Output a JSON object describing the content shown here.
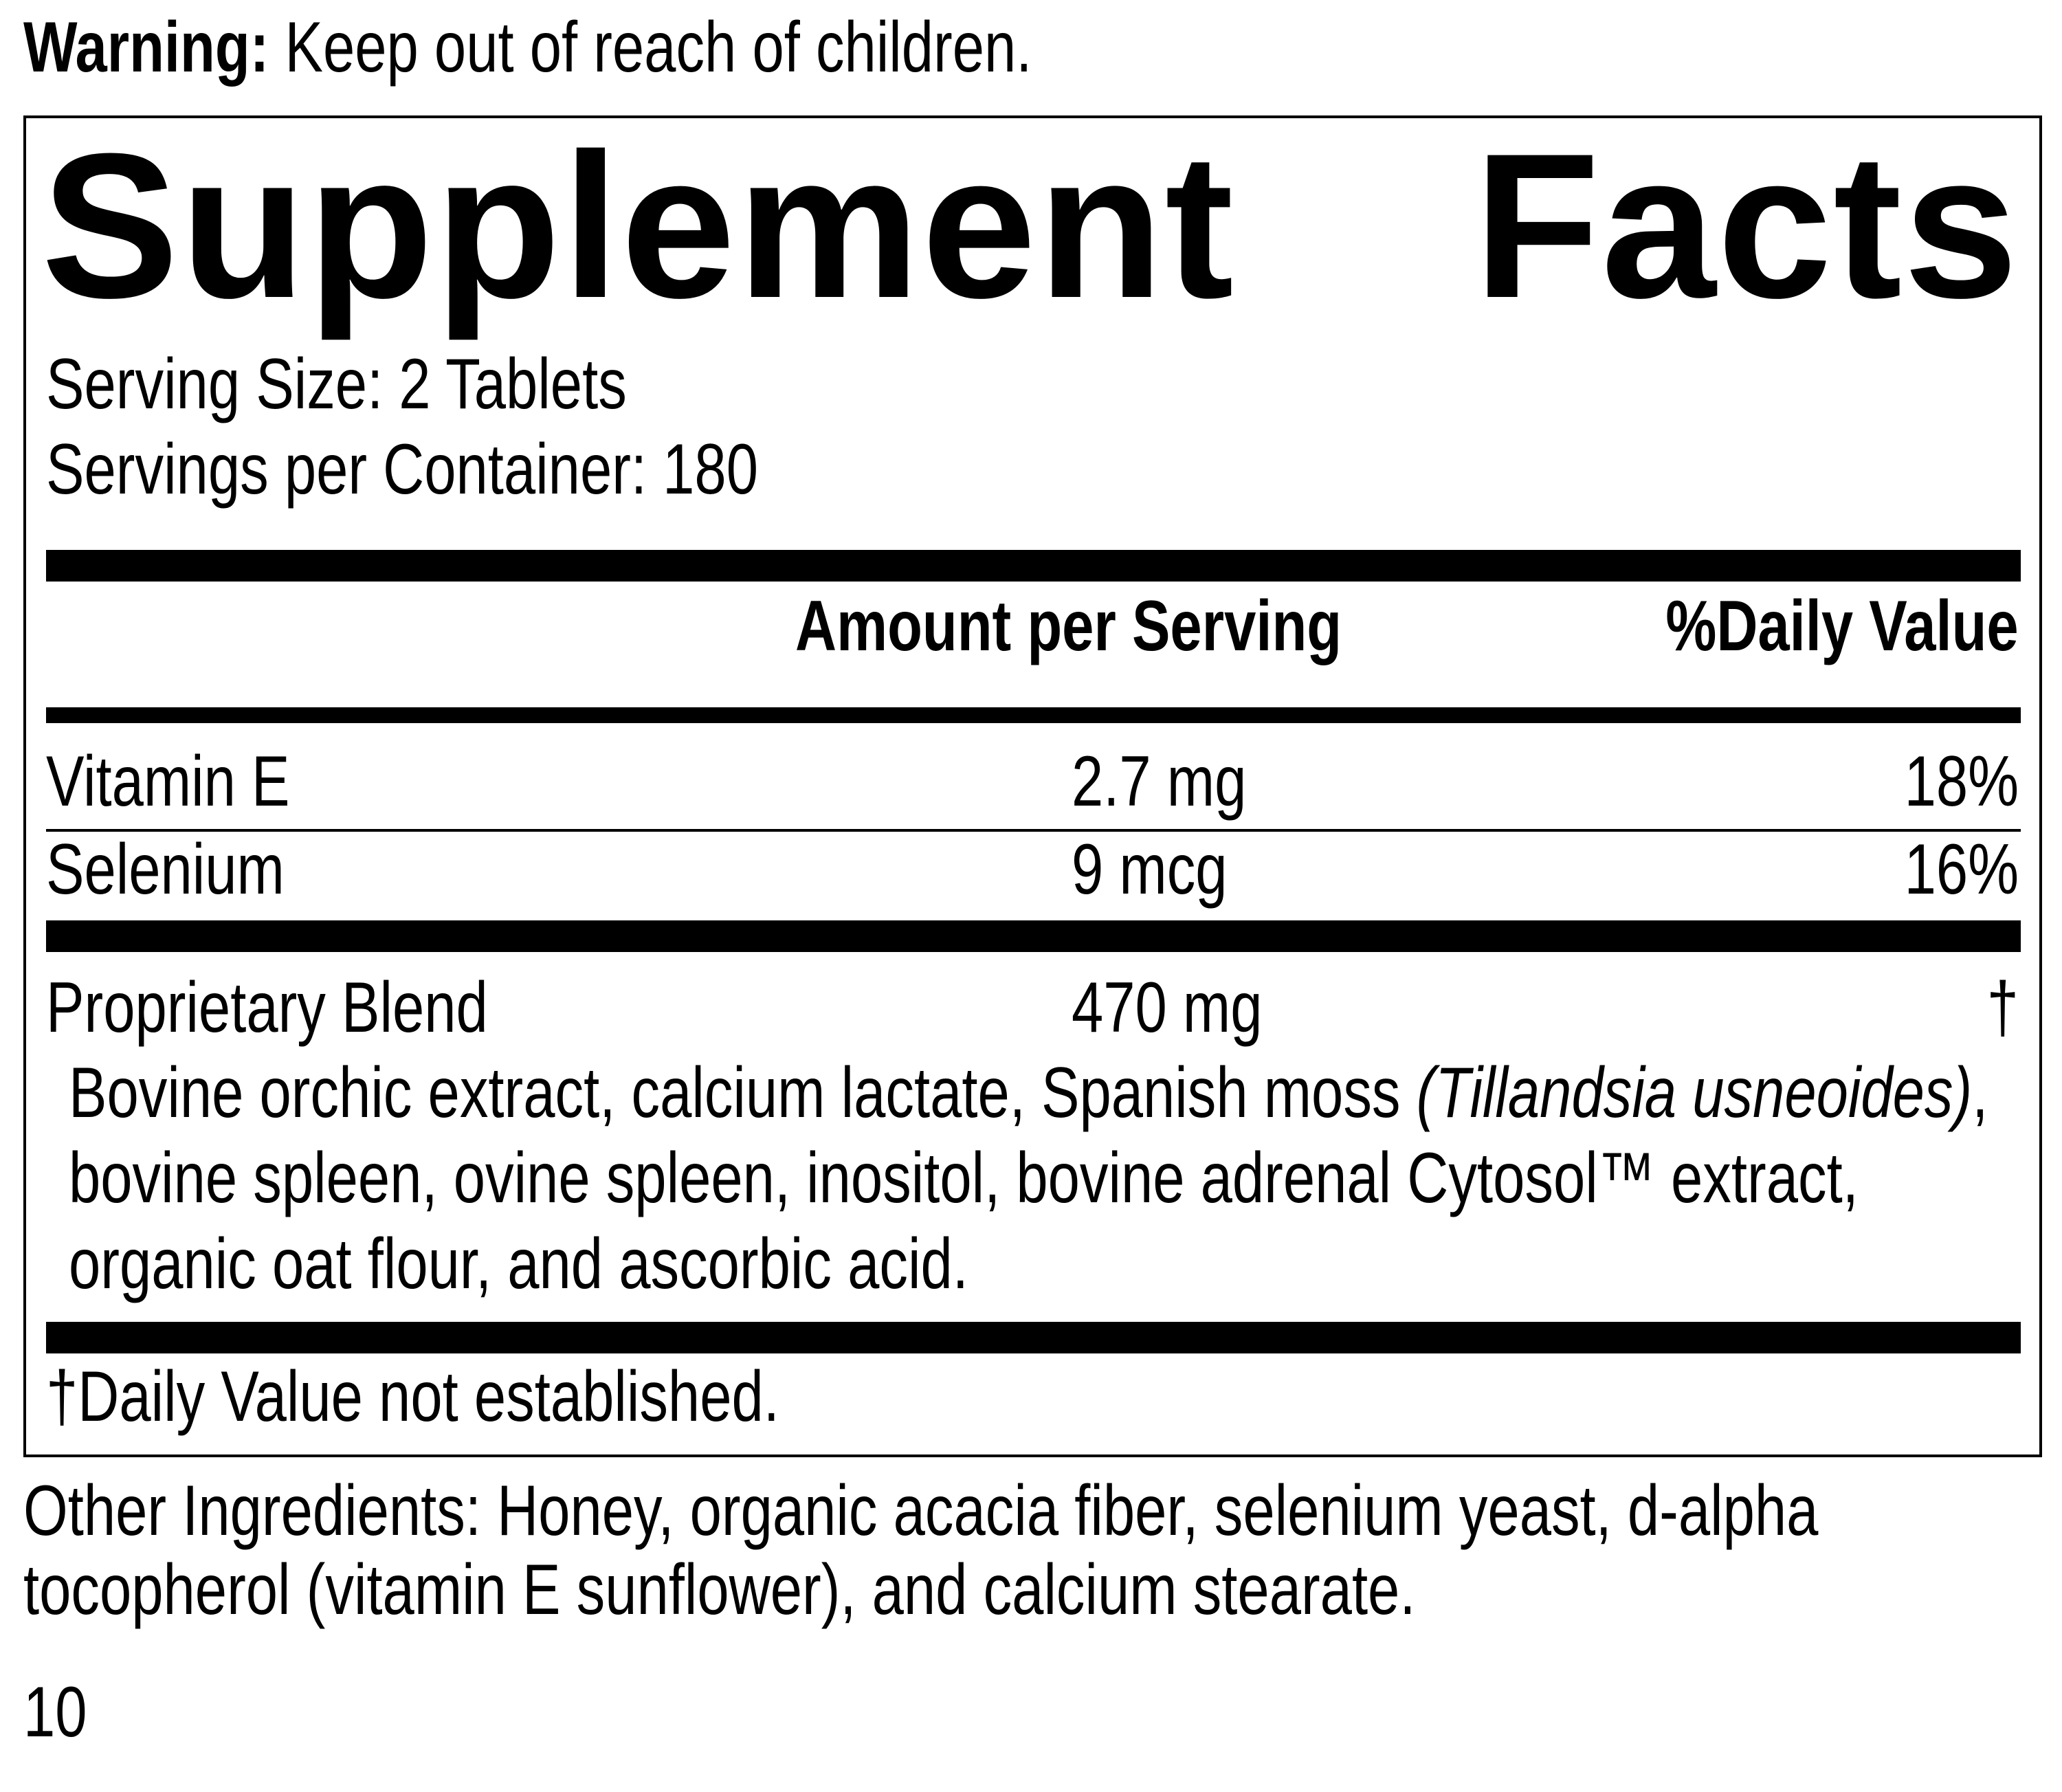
{
  "warning": {
    "label": "Warning:",
    "text": " Keep out of reach of children."
  },
  "panel": {
    "title_words": [
      "Supplement",
      "Facts"
    ],
    "serving_size": "Serving Size: 2 Tablets",
    "servings_per_container": "Servings per Container: 180",
    "columns": {
      "amount": "Amount per Serving",
      "daily_value": "%Daily Value"
    },
    "rows": [
      {
        "name": "Vitamin E",
        "amount": "2.7 mg",
        "dv": "18%"
      },
      {
        "name": "Selenium",
        "amount": "9 mcg",
        "dv": "16%"
      },
      {
        "name": "Proprietary Blend",
        "amount": "470 mg",
        "dv": "†"
      }
    ],
    "blend_lines": [
      {
        "pre": "Bovine orchic extract, calcium lactate, Spanish moss ",
        "italic": "(Tillandsia usneoides)",
        "post": ","
      },
      {
        "pre": "bovine spleen, ovine spleen, inositol, bovine adrenal Cytosol™ extract,",
        "italic": "",
        "post": ""
      },
      {
        "pre": "organic oat flour, and ascorbic acid.",
        "italic": "",
        "post": ""
      }
    ],
    "footnote": "†Daily Value not established."
  },
  "other_ingredients": [
    "Other Ingredients: Honey, organic acacia fiber, selenium yeast, d-alpha",
    "tocopherol (vitamin E sunflower), and calcium stearate."
  ],
  "page_number": "10"
}
